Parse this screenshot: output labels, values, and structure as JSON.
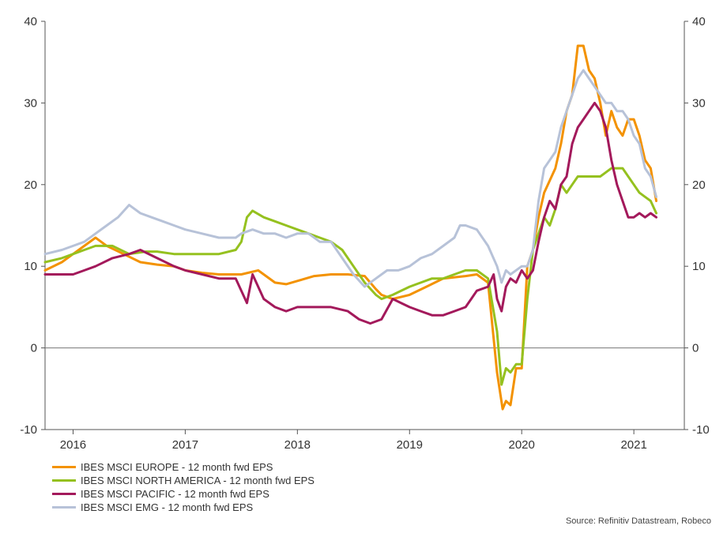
{
  "chart_data": {
    "type": "line",
    "title": "",
    "xlabel": "",
    "ylabel": "",
    "ylim": [
      -10,
      40
    ],
    "y_ticks": [
      -10,
      0,
      10,
      20,
      30,
      40
    ],
    "y_tick_labels": [
      "-10",
      "0",
      "10",
      "20",
      "30",
      "40"
    ],
    "xlim": [
      2015.75,
      2021.45
    ],
    "x_ticks": [
      2016,
      2017,
      2018,
      2019,
      2020,
      2021
    ],
    "x_tick_labels": [
      "2016",
      "2017",
      "2018",
      "2019",
      "2020",
      "2021"
    ],
    "grid": false,
    "zero_line": true,
    "dual_y_axis": true,
    "legend_position": "bottom-left",
    "series": [
      {
        "name": "IBES MSCI EUROPE - 12 month fwd EPS",
        "color": "#F39200",
        "x": [
          2015.75,
          2015.9,
          2016.0,
          2016.1,
          2016.2,
          2016.3,
          2016.45,
          2016.6,
          2016.75,
          2016.9,
          2017.0,
          2017.15,
          2017.3,
          2017.5,
          2017.65,
          2017.8,
          2017.9,
          2018.0,
          2018.15,
          2018.3,
          2018.45,
          2018.6,
          2018.7,
          2018.75,
          2018.85,
          2019.0,
          2019.15,
          2019.3,
          2019.5,
          2019.6,
          2019.7,
          2019.78,
          2019.83,
          2019.86,
          2019.9,
          2019.95,
          2020.0,
          2020.05,
          2020.1,
          2020.15,
          2020.2,
          2020.3,
          2020.35,
          2020.4,
          2020.45,
          2020.5,
          2020.55,
          2020.6,
          2020.65,
          2020.7,
          2020.75,
          2020.8,
          2020.85,
          2020.9,
          2020.95,
          2021.0,
          2021.05,
          2021.1,
          2021.15,
          2021.2
        ],
        "values": [
          9.5,
          10.5,
          11.5,
          12.5,
          13.5,
          12.5,
          11.5,
          10.5,
          10.2,
          10,
          9.5,
          9.2,
          9.0,
          9.0,
          9.5,
          8.0,
          7.8,
          8.2,
          8.8,
          9.0,
          9.0,
          8.8,
          7.2,
          6.5,
          6.0,
          6.5,
          7.5,
          8.5,
          8.8,
          9.0,
          8.0,
          -3.0,
          -7.5,
          -6.5,
          -7.0,
          -2.5,
          -2.5,
          10,
          12,
          16,
          19,
          22,
          25,
          29,
          31,
          37,
          37,
          34,
          33,
          30,
          26,
          29,
          27,
          26,
          28,
          28,
          26,
          23,
          22,
          18
        ]
      },
      {
        "name": "IBES MSCI NORTH AMERICA - 12 month fwd EPS",
        "color": "#95C11F",
        "x": [
          2015.75,
          2015.9,
          2016.0,
          2016.1,
          2016.2,
          2016.35,
          2016.5,
          2016.65,
          2016.75,
          2016.9,
          2017.0,
          2017.15,
          2017.3,
          2017.45,
          2017.5,
          2017.55,
          2017.6,
          2017.7,
          2017.8,
          2017.9,
          2018.0,
          2018.1,
          2018.2,
          2018.3,
          2018.4,
          2018.5,
          2018.6,
          2018.7,
          2018.75,
          2018.85,
          2019.0,
          2019.1,
          2019.2,
          2019.3,
          2019.4,
          2019.5,
          2019.6,
          2019.7,
          2019.78,
          2019.82,
          2019.86,
          2019.9,
          2019.95,
          2020.0,
          2020.05,
          2020.1,
          2020.15,
          2020.2,
          2020.25,
          2020.3,
          2020.35,
          2020.4,
          2020.45,
          2020.5,
          2020.6,
          2020.7,
          2020.8,
          2020.9,
          2021.0,
          2021.05,
          2021.1,
          2021.15,
          2021.2
        ],
        "values": [
          10.5,
          11,
          11.5,
          12,
          12.5,
          12.5,
          11.5,
          11.8,
          11.8,
          11.5,
          11.5,
          11.5,
          11.5,
          12,
          13,
          16,
          16.8,
          16,
          15.5,
          15,
          14.5,
          14,
          13.5,
          13,
          12,
          10,
          8,
          6.5,
          6,
          6.5,
          7.5,
          8,
          8.5,
          8.5,
          9,
          9.5,
          9.5,
          8.5,
          2,
          -4.5,
          -2.5,
          -3.0,
          -2.0,
          -2.0,
          6,
          12,
          14,
          16,
          15,
          17,
          20,
          19,
          20,
          21,
          21,
          21,
          22,
          22,
          20,
          19,
          18.5,
          18,
          16.5
        ]
      },
      {
        "name": "IBES MSCI PACIFIC - 12 month fwd EPS",
        "color": "#A3195B",
        "x": [
          2015.75,
          2015.9,
          2016.0,
          2016.1,
          2016.2,
          2016.35,
          2016.5,
          2016.6,
          2016.75,
          2016.9,
          2017.0,
          2017.15,
          2017.3,
          2017.45,
          2017.5,
          2017.55,
          2017.6,
          2017.7,
          2017.8,
          2017.9,
          2018.0,
          2018.15,
          2018.3,
          2018.45,
          2018.55,
          2018.65,
          2018.75,
          2018.85,
          2019.0,
          2019.1,
          2019.2,
          2019.3,
          2019.4,
          2019.5,
          2019.55,
          2019.6,
          2019.7,
          2019.75,
          2019.78,
          2019.82,
          2019.86,
          2019.9,
          2019.95,
          2020.0,
          2020.05,
          2020.1,
          2020.15,
          2020.2,
          2020.25,
          2020.3,
          2020.35,
          2020.4,
          2020.45,
          2020.5,
          2020.55,
          2020.6,
          2020.65,
          2020.7,
          2020.75,
          2020.8,
          2020.85,
          2020.9,
          2020.95,
          2021.0,
          2021.05,
          2021.1,
          2021.15,
          2021.2
        ],
        "values": [
          9,
          9,
          9,
          9.5,
          10,
          11,
          11.5,
          12,
          11,
          10,
          9.5,
          9,
          8.5,
          8.5,
          7,
          5.5,
          9,
          6,
          5,
          4.5,
          5,
          5,
          5,
          4.5,
          3.5,
          3,
          3.5,
          6,
          5,
          4.5,
          4,
          4,
          4.5,
          5,
          6,
          7,
          7.5,
          9,
          6,
          4.5,
          7.5,
          8.5,
          8,
          9.5,
          8.5,
          9.5,
          13,
          16,
          18,
          17,
          20,
          21,
          25,
          27,
          28,
          29,
          30,
          29,
          27,
          23,
          20,
          18,
          16,
          16,
          16.5,
          16,
          16.5,
          16
        ]
      },
      {
        "name": "IBES MSCI EMG - 12 month fwd EPS",
        "color": "#B7C2D8",
        "x": [
          2015.75,
          2015.9,
          2016.0,
          2016.1,
          2016.2,
          2016.3,
          2016.4,
          2016.5,
          2016.6,
          2016.7,
          2016.8,
          2016.9,
          2017.0,
          2017.15,
          2017.3,
          2017.45,
          2017.5,
          2017.6,
          2017.7,
          2017.8,
          2017.9,
          2018.0,
          2018.1,
          2018.2,
          2018.3,
          2018.4,
          2018.5,
          2018.6,
          2018.7,
          2018.8,
          2018.9,
          2019.0,
          2019.1,
          2019.2,
          2019.3,
          2019.4,
          2019.45,
          2019.5,
          2019.6,
          2019.7,
          2019.78,
          2019.82,
          2019.86,
          2019.9,
          2019.95,
          2020.0,
          2020.05,
          2020.1,
          2020.15,
          2020.2,
          2020.25,
          2020.3,
          2020.35,
          2020.4,
          2020.45,
          2020.5,
          2020.55,
          2020.6,
          2020.65,
          2020.7,
          2020.75,
          2020.8,
          2020.85,
          2020.9,
          2020.95,
          2021.0,
          2021.05,
          2021.1,
          2021.15,
          2021.2
        ],
        "values": [
          11.5,
          12,
          12.5,
          13,
          14,
          15,
          16,
          17.5,
          16.5,
          16,
          15.5,
          15,
          14.5,
          14,
          13.5,
          13.5,
          14,
          14.5,
          14,
          14,
          13.5,
          14,
          14,
          13,
          13,
          11,
          9,
          7.5,
          8.5,
          9.5,
          9.5,
          10,
          11,
          11.5,
          12.5,
          13.5,
          15,
          15,
          14.5,
          12.5,
          10,
          8,
          9.5,
          9,
          9.5,
          10,
          10,
          12,
          18,
          22,
          23,
          24,
          27,
          29,
          31,
          33,
          34,
          33,
          32,
          31,
          30,
          30,
          29,
          29,
          28,
          26,
          25,
          22,
          21,
          18.5
        ]
      }
    ]
  },
  "source": "Source: Refinitiv Datastream, Robeco"
}
